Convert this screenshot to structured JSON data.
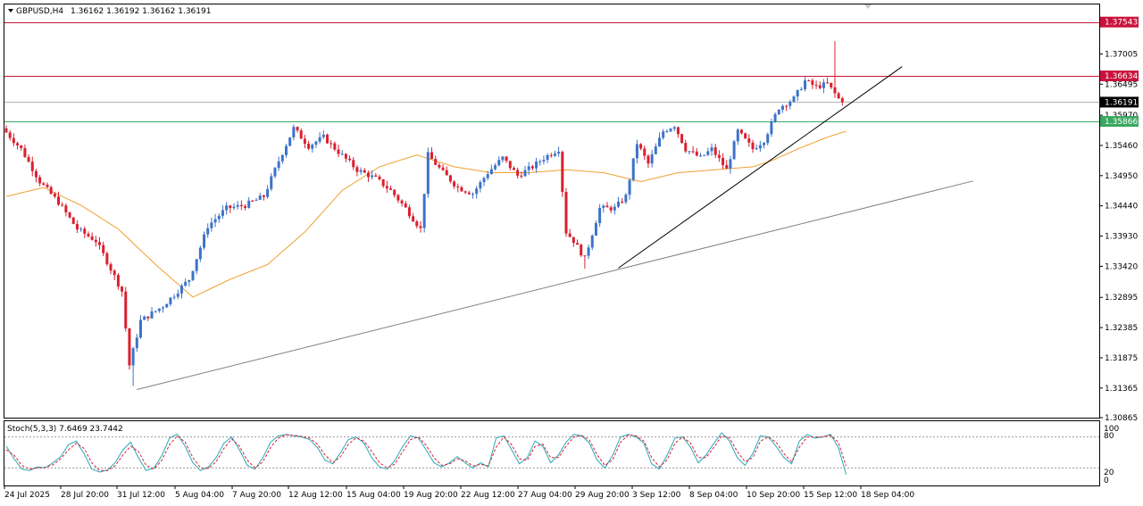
{
  "header": {
    "symbol": "GBPUSD,H4",
    "ohlc": "1.36162 1.36192 1.36162 1.36191"
  },
  "indicator": {
    "label": "Stoch(5,3,3) 7.6469 23.7442",
    "levels": [
      "100",
      "80",
      "20",
      "0"
    ]
  },
  "colors": {
    "bull": "#3d73c9",
    "bear": "#d9202f",
    "ma": "#f0a030",
    "resistance": "#c8143c",
    "support": "#3aa860",
    "trend": "#000000",
    "stoch_main": "#2aa7b8",
    "stoch_signal": "#d9202f"
  },
  "chart_data": [
    {
      "type": "candlestick",
      "symbol": "GBPUSD",
      "timeframe": "H4",
      "ylim": [
        1.30865,
        1.3784
      ],
      "y_ticks": [
        "1.37005",
        "1.36495",
        "1.35970",
        "1.35460",
        "1.34950",
        "1.34440",
        "1.33930",
        "1.33420",
        "1.32895",
        "1.32385",
        "1.31875",
        "1.31365",
        "1.30865"
      ],
      "x_ticks": [
        "24 Jul 2025",
        "28 Jul 20:00",
        "31 Jul 12:00",
        "5 Aug 04:00",
        "7 Aug 20:00",
        "12 Aug 12:00",
        "15 Aug 04:00",
        "19 Aug 20:00",
        "22 Aug 12:00",
        "27 Aug 04:00",
        "29 Aug 20:00",
        "3 Sep 12:00",
        "8 Sep 04:00",
        "10 Sep 20:00",
        "15 Sep 12:00",
        "18 Sep 04:00"
      ],
      "price_tags": [
        {
          "label": "1.37543",
          "value": 1.37543,
          "kind": "resistance"
        },
        {
          "label": "1.36634",
          "value": 1.36634,
          "kind": "resistance"
        },
        {
          "label": "1.36191",
          "value": 1.36191,
          "kind": "current"
        },
        {
          "label": "1.35866",
          "value": 1.35866,
          "kind": "support"
        }
      ],
      "anchors": [
        {
          "t": 0,
          "p": 1.3575
        },
        {
          "t": 5,
          "p": 1.354
        },
        {
          "t": 10,
          "p": 1.3485
        },
        {
          "t": 15,
          "p": 1.345
        },
        {
          "t": 20,
          "p": 1.3405
        },
        {
          "t": 25,
          "p": 1.3385
        },
        {
          "t": 28,
          "p": 1.335
        },
        {
          "t": 32,
          "p": 1.33
        },
        {
          "t": 34,
          "p": 1.3175
        },
        {
          "t": 37,
          "p": 1.325
        },
        {
          "t": 43,
          "p": 1.3275
        },
        {
          "t": 50,
          "p": 1.332
        },
        {
          "t": 55,
          "p": 1.341
        },
        {
          "t": 60,
          "p": 1.344
        },
        {
          "t": 65,
          "p": 1.3445
        },
        {
          "t": 70,
          "p": 1.346
        },
        {
          "t": 74,
          "p": 1.352
        },
        {
          "t": 78,
          "p": 1.3575
        },
        {
          "t": 82,
          "p": 1.3545
        },
        {
          "t": 86,
          "p": 1.356
        },
        {
          "t": 90,
          "p": 1.3535
        },
        {
          "t": 95,
          "p": 1.3505
        },
        {
          "t": 100,
          "p": 1.349
        },
        {
          "t": 104,
          "p": 1.347
        },
        {
          "t": 108,
          "p": 1.344
        },
        {
          "t": 112,
          "p": 1.3405
        },
        {
          "t": 114,
          "p": 1.353
        },
        {
          "t": 118,
          "p": 1.35
        },
        {
          "t": 122,
          "p": 1.3475
        },
        {
          "t": 126,
          "p": 1.3465
        },
        {
          "t": 130,
          "p": 1.35
        },
        {
          "t": 134,
          "p": 1.3525
        },
        {
          "t": 138,
          "p": 1.3495
        },
        {
          "t": 142,
          "p": 1.351
        },
        {
          "t": 145,
          "p": 1.3525
        },
        {
          "t": 149,
          "p": 1.354
        },
        {
          "t": 151,
          "p": 1.34
        },
        {
          "t": 153,
          "p": 1.3385
        },
        {
          "t": 156,
          "p": 1.3355
        },
        {
          "t": 160,
          "p": 1.344
        },
        {
          "t": 164,
          "p": 1.344
        },
        {
          "t": 167,
          "p": 1.346
        },
        {
          "t": 170,
          "p": 1.355
        },
        {
          "t": 173,
          "p": 1.3515
        },
        {
          "t": 177,
          "p": 1.357
        },
        {
          "t": 180,
          "p": 1.358
        },
        {
          "t": 183,
          "p": 1.354
        },
        {
          "t": 187,
          "p": 1.3525
        },
        {
          "t": 190,
          "p": 1.354
        },
        {
          "t": 194,
          "p": 1.3505
        },
        {
          "t": 197,
          "p": 1.357
        },
        {
          "t": 201,
          "p": 1.354
        },
        {
          "t": 204,
          "p": 1.3555
        },
        {
          "t": 208,
          "p": 1.361
        },
        {
          "t": 212,
          "p": 1.3625
        },
        {
          "t": 215,
          "p": 1.3655
        },
        {
          "t": 218,
          "p": 1.3645
        },
        {
          "t": 221,
          "p": 1.365
        },
        {
          "t": 224,
          "p": 1.3625
        },
        {
          "t": 225,
          "p": 1.36191
        }
      ],
      "moving_average": [
        {
          "t": 0,
          "p": 1.346
        },
        {
          "t": 10,
          "p": 1.3475
        },
        {
          "t": 20,
          "p": 1.3445
        },
        {
          "t": 30,
          "p": 1.3405
        },
        {
          "t": 40,
          "p": 1.3345
        },
        {
          "t": 50,
          "p": 1.329
        },
        {
          "t": 60,
          "p": 1.332
        },
        {
          "t": 70,
          "p": 1.3345
        },
        {
          "t": 80,
          "p": 1.34
        },
        {
          "t": 90,
          "p": 1.347
        },
        {
          "t": 100,
          "p": 1.351
        },
        {
          "t": 110,
          "p": 1.353
        },
        {
          "t": 120,
          "p": 1.351
        },
        {
          "t": 130,
          "p": 1.35
        },
        {
          "t": 140,
          "p": 1.35
        },
        {
          "t": 150,
          "p": 1.3505
        },
        {
          "t": 160,
          "p": 1.35
        },
        {
          "t": 170,
          "p": 1.3485
        },
        {
          "t": 180,
          "p": 1.35
        },
        {
          "t": 190,
          "p": 1.3505
        },
        {
          "t": 200,
          "p": 1.351
        },
        {
          "t": 205,
          "p": 1.352
        },
        {
          "t": 212,
          "p": 1.354
        },
        {
          "t": 220,
          "p": 1.356
        },
        {
          "t": 225,
          "p": 1.357
        }
      ],
      "trendlines": [
        {
          "kind": "steep",
          "from": {
            "t": 164,
            "p": 1.3339
          },
          "to": {
            "t": 240,
            "p": 1.3679
          }
        },
        {
          "kind": "long",
          "from": {
            "t": 35,
            "p": 1.3134
          },
          "to": {
            "t": 259,
            "p": 1.3486
          }
        }
      ]
    },
    {
      "type": "line",
      "title": "Stoch(5,3,3) 7.6469 23.7442",
      "ylim": [
        0,
        100
      ],
      "levels": [
        20,
        80
      ],
      "series": [
        {
          "kind": "main",
          "values": [
            62,
            38,
            18,
            15,
            22,
            20,
            30,
            42,
            65,
            72,
            48,
            18,
            12,
            16,
            30,
            55,
            70,
            40,
            15,
            20,
            44,
            78,
            85,
            62,
            30,
            15,
            22,
            40,
            68,
            80,
            55,
            25,
            18,
            40,
            70,
            82,
            85,
            82,
            80,
            75,
            60,
            35,
            28,
            50,
            75,
            80,
            68,
            40,
            22,
            18,
            35,
            62,
            82,
            78,
            55,
            30,
            22,
            30,
            42,
            30,
            20,
            30,
            22,
            78,
            82,
            55,
            28,
            40,
            72,
            62,
            30,
            45,
            70,
            85,
            82,
            68,
            35,
            20,
            45,
            80,
            85,
            80,
            68,
            28,
            18,
            45,
            78,
            80,
            60,
            30,
            45,
            68,
            88,
            72,
            40,
            25,
            48,
            82,
            80,
            62,
            40,
            28,
            72,
            85,
            78,
            80,
            85,
            60,
            7.6469
          ]
        },
        {
          "kind": "signal",
          "values": [
            55,
            45,
            25,
            18,
            20,
            21,
            26,
            38,
            55,
            68,
            58,
            30,
            15,
            15,
            24,
            45,
            62,
            52,
            25,
            18,
            35,
            65,
            82,
            70,
            40,
            20,
            19,
            32,
            58,
            76,
            62,
            35,
            20,
            32,
            60,
            78,
            84,
            83,
            81,
            78,
            66,
            45,
            30,
            42,
            66,
            78,
            72,
            52,
            30,
            20,
            28,
            52,
            75,
            80,
            64,
            40,
            25,
            28,
            38,
            34,
            24,
            27,
            24,
            60,
            80,
            65,
            38,
            35,
            62,
            66,
            40,
            40,
            62,
            80,
            83,
            74,
            45,
            25,
            36,
            70,
            84,
            82,
            72,
            40,
            22,
            36,
            68,
            80,
            68,
            40,
            40,
            60,
            82,
            78,
            52,
            32,
            40,
            72,
            80,
            70,
            48,
            32,
            60,
            80,
            80,
            80,
            83,
            70,
            23.7442
          ]
        }
      ]
    }
  ]
}
